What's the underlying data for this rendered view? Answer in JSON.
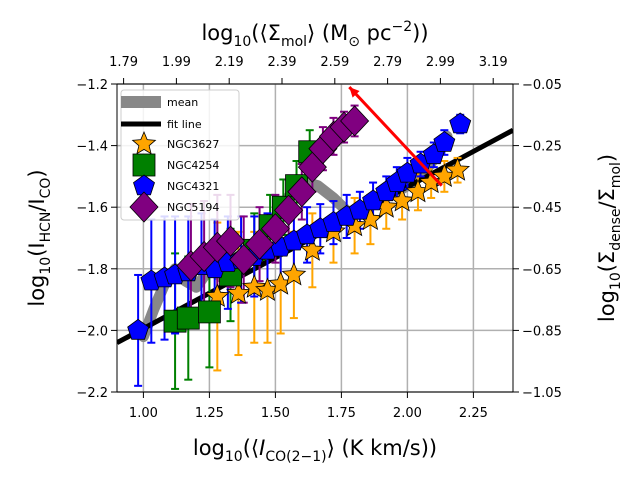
{
  "chart_data": {
    "type": "scatter",
    "xlabel": {
      "pre": "log",
      "sub": "10",
      "mid": "(⟨",
      "var": "I",
      "varsub": "CO(2−1)",
      "post": "⟩ (K km/s))"
    },
    "ylabel_left": {
      "pre": "log",
      "sub": "10",
      "mid": "(I",
      "s1": "HCN",
      "slash": "/I",
      "s2": "CO",
      "post": ")"
    },
    "ylabel_right": {
      "pre": "log",
      "sub": "10",
      "mid": "(Σ",
      "s1": "dense",
      "slash": "/Σ",
      "s2": "mol",
      "post": ")"
    },
    "xlabel_top": {
      "pre": "log",
      "sub": "10",
      "mid": "(⟨Σ",
      "s1": "mol",
      "mid2": "⟩ (M",
      "sun": "⊙",
      "unit": " pc",
      "exp": "−2",
      "post": "))"
    },
    "xlim": [
      0.9,
      2.4
    ],
    "ylim": [
      -2.2,
      -1.2
    ],
    "ylim_right": [
      -1.05,
      -0.05
    ],
    "xticks": [
      1.0,
      1.25,
      1.5,
      1.75,
      2.0,
      2.25
    ],
    "xtick_labels": [
      "1.00",
      "1.25",
      "1.50",
      "1.75",
      "2.00",
      "2.25"
    ],
    "yticks": [
      -2.2,
      -2.0,
      -1.8,
      -1.6,
      -1.4,
      -1.2
    ],
    "ytick_labels": [
      "−2.2",
      "−2.0",
      "−1.8",
      "−1.6",
      "−1.4",
      "−1.2"
    ],
    "yticks_right": [
      -1.05,
      -0.85,
      -0.65,
      -0.45,
      -0.25,
      -0.05
    ],
    "ytick_labels_right": [
      "−1.05",
      "−0.85",
      "−0.65",
      "−0.45",
      "−0.25",
      "−0.05"
    ],
    "xticks_top": [
      0.925,
      1.125,
      1.325,
      1.525,
      1.725,
      1.925,
      2.125,
      2.325
    ],
    "xtick_labels_top": [
      "1.79",
      "1.99",
      "2.19",
      "2.39",
      "2.59",
      "2.79",
      "2.99",
      "3.19"
    ],
    "grid": true,
    "legend_position": "upper-left",
    "fit_line": {
      "label": "fit line",
      "x": [
        0.9,
        2.4
      ],
      "y": [
        -2.04,
        -1.35
      ],
      "color": "#000000"
    },
    "mean": {
      "label": "mean",
      "color": "#888888",
      "x": [
        1.0,
        1.04,
        1.08,
        1.12,
        1.16,
        1.2,
        1.25,
        1.3,
        1.36,
        1.42,
        1.48,
        1.54,
        1.58,
        1.62,
        1.66,
        1.72,
        1.78,
        1.84,
        1.9,
        1.96,
        2.02,
        2.07,
        2.12,
        2.15
      ],
      "y": [
        -2.02,
        -1.93,
        -1.85,
        -1.8,
        -1.84,
        -1.86,
        -1.8,
        -1.83,
        -1.78,
        -1.72,
        -1.66,
        -1.58,
        -1.53,
        -1.52,
        -1.53,
        -1.57,
        -1.62,
        -1.6,
        -1.56,
        -1.55,
        -1.52,
        -1.48,
        -1.42,
        -1.37
      ]
    },
    "series": [
      {
        "name": "NGC3627",
        "marker": "star",
        "color": "#FFA500",
        "x": [
          1.28,
          1.36,
          1.42,
          1.47,
          1.52,
          1.57,
          1.64,
          1.72,
          1.8,
          1.86,
          1.92,
          1.98,
          2.04,
          2.09,
          2.14,
          2.19
        ],
        "y": [
          -1.89,
          -1.88,
          -1.86,
          -1.87,
          -1.85,
          -1.82,
          -1.74,
          -1.68,
          -1.66,
          -1.64,
          -1.6,
          -1.58,
          -1.55,
          -1.52,
          -1.5,
          -1.48
        ],
        "yerr": [
          0.24,
          0.2,
          0.18,
          0.17,
          0.16,
          0.14,
          0.12,
          0.1,
          0.09,
          0.08,
          0.07,
          0.06,
          0.06,
          0.05,
          0.05,
          0.04
        ]
      },
      {
        "name": "NGC4254",
        "marker": "square",
        "color": "#008000",
        "x": [
          1.12,
          1.17,
          1.25,
          1.33,
          1.42,
          1.48,
          1.53,
          1.58,
          1.63
        ],
        "y": [
          -1.97,
          -1.96,
          -1.94,
          -1.82,
          -1.74,
          -1.66,
          -1.6,
          -1.53,
          -1.42
        ],
        "yerr": [
          0.22,
          0.2,
          0.18,
          0.15,
          0.12,
          0.1,
          0.09,
          0.08,
          0.07
        ]
      },
      {
        "name": "NGC4321",
        "marker": "pentagon",
        "color": "#0000FF",
        "x": [
          0.98,
          1.03,
          1.08,
          1.12,
          1.17,
          1.22,
          1.27,
          1.32,
          1.37,
          1.42,
          1.47,
          1.52,
          1.57,
          1.62,
          1.67,
          1.72,
          1.77,
          1.82,
          1.87,
          1.92,
          1.96,
          2.0,
          2.05,
          2.1,
          2.14,
          2.2
        ],
        "y": [
          -2.0,
          -1.84,
          -1.83,
          -1.82,
          -1.81,
          -1.79,
          -1.8,
          -1.78,
          -1.77,
          -1.76,
          -1.74,
          -1.73,
          -1.71,
          -1.69,
          -1.67,
          -1.65,
          -1.63,
          -1.61,
          -1.58,
          -1.55,
          -1.52,
          -1.49,
          -1.46,
          -1.43,
          -1.39,
          -1.33
        ],
        "yerr": [
          0.18,
          0.2,
          0.2,
          0.19,
          0.18,
          0.17,
          0.16,
          0.15,
          0.14,
          0.13,
          0.12,
          0.11,
          0.1,
          0.09,
          0.08,
          0.07,
          0.07,
          0.06,
          0.06,
          0.05,
          0.05,
          0.05,
          0.04,
          0.04,
          0.04,
          0.03
        ]
      },
      {
        "name": "NGC5194",
        "marker": "diamond",
        "color": "#800080",
        "x": [
          1.18,
          1.23,
          1.28,
          1.33,
          1.38,
          1.44,
          1.5,
          1.55,
          1.6,
          1.64,
          1.68,
          1.72,
          1.76,
          1.8
        ],
        "y": [
          -1.79,
          -1.76,
          -1.73,
          -1.71,
          -1.77,
          -1.72,
          -1.67,
          -1.61,
          -1.55,
          -1.47,
          -1.41,
          -1.37,
          -1.34,
          -1.32
        ],
        "yerr": [
          0.2,
          0.18,
          0.17,
          0.15,
          0.14,
          0.12,
          0.11,
          0.1,
          0.09,
          0.08,
          0.07,
          0.06,
          0.05,
          0.05
        ]
      }
    ],
    "annotation": {
      "type": "arrow",
      "color": "#FF0000",
      "from": [
        2.13,
        -1.53
      ],
      "to": [
        1.78,
        -1.21
      ]
    }
  }
}
